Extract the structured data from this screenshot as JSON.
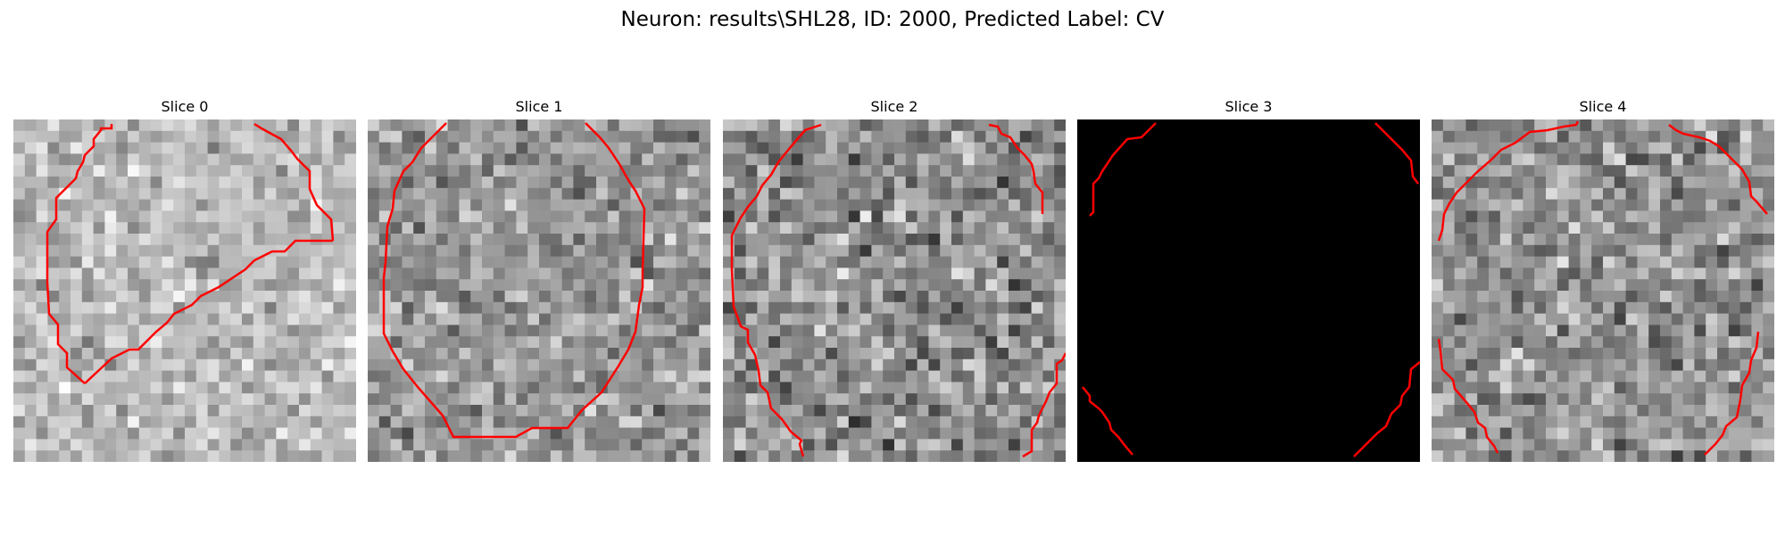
{
  "figure": {
    "title": "Neuron: results\\SHL28, ID: 2000, Predicted Label: CV"
  },
  "grid_cells": 30,
  "slices": [
    {
      "title": "Slice 0",
      "seed": 11,
      "mean": 185,
      "spread": 50,
      "outline_color": "#ff0000",
      "blank": false
    },
    {
      "title": "Slice 1",
      "seed": 23,
      "mean": 150,
      "spread": 60,
      "outline_color": "#ff0000",
      "blank": false
    },
    {
      "title": "Slice 2",
      "seed": 37,
      "mean": 140,
      "spread": 70,
      "outline_color": "#ff0000",
      "blank": false
    },
    {
      "title": "Slice 3",
      "seed": 41,
      "mean": 0,
      "spread": 0,
      "outline_color": "#ff0000",
      "blank": true
    },
    {
      "title": "Slice 4",
      "seed": 53,
      "mean": 145,
      "spread": 65,
      "outline_color": "#ff0000",
      "blank": false
    }
  ]
}
